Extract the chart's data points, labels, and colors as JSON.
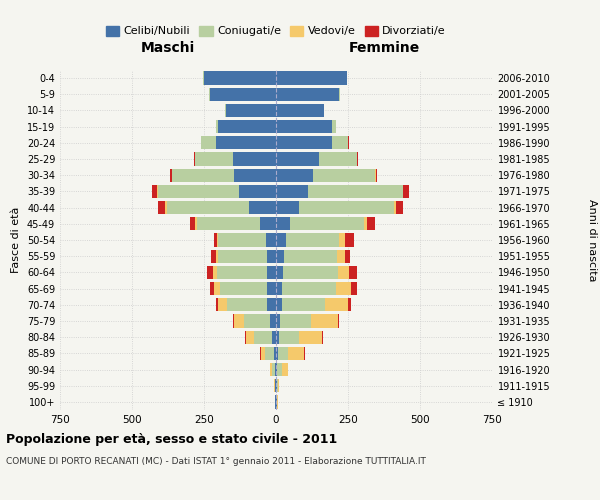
{
  "age_groups": [
    "100+",
    "95-99",
    "90-94",
    "85-89",
    "80-84",
    "75-79",
    "70-74",
    "65-69",
    "60-64",
    "55-59",
    "50-54",
    "45-49",
    "40-44",
    "35-39",
    "30-34",
    "25-29",
    "20-24",
    "15-19",
    "10-14",
    "5-9",
    "0-4"
  ],
  "birth_years": [
    "≤ 1910",
    "1911-1915",
    "1916-1920",
    "1921-1925",
    "1926-1930",
    "1931-1935",
    "1936-1940",
    "1941-1945",
    "1946-1950",
    "1951-1955",
    "1956-1960",
    "1961-1965",
    "1966-1970",
    "1971-1975",
    "1976-1980",
    "1981-1985",
    "1986-1990",
    "1991-1995",
    "1996-2000",
    "2001-2005",
    "2006-2010"
  ],
  "male": {
    "celibi": [
      2,
      2,
      5,
      8,
      15,
      20,
      30,
      30,
      30,
      30,
      35,
      55,
      95,
      130,
      145,
      150,
      210,
      200,
      175,
      230,
      250
    ],
    "coniugati": [
      2,
      3,
      10,
      30,
      60,
      90,
      140,
      165,
      175,
      170,
      165,
      220,
      285,
      280,
      215,
      130,
      50,
      10,
      2,
      2,
      2
    ],
    "vedovi": [
      1,
      2,
      5,
      15,
      30,
      35,
      30,
      20,
      15,
      10,
      5,
      5,
      5,
      2,
      2,
      1,
      1,
      0,
      0,
      0,
      0
    ],
    "divorziati": [
      0,
      0,
      0,
      2,
      3,
      5,
      10,
      15,
      20,
      15,
      10,
      20,
      25,
      20,
      5,
      2,
      1,
      0,
      0,
      0,
      0
    ]
  },
  "female": {
    "nubili": [
      2,
      2,
      5,
      8,
      10,
      15,
      20,
      22,
      25,
      28,
      35,
      50,
      80,
      110,
      130,
      150,
      195,
      195,
      165,
      220,
      245
    ],
    "coniugate": [
      2,
      4,
      15,
      35,
      70,
      105,
      150,
      185,
      190,
      185,
      185,
      255,
      330,
      330,
      215,
      130,
      55,
      12,
      2,
      2,
      2
    ],
    "vedove": [
      2,
      5,
      20,
      55,
      80,
      95,
      80,
      55,
      40,
      25,
      20,
      10,
      5,
      2,
      2,
      1,
      1,
      0,
      0,
      0,
      0
    ],
    "divorziate": [
      0,
      0,
      0,
      2,
      3,
      5,
      10,
      20,
      25,
      20,
      30,
      30,
      25,
      20,
      5,
      2,
      1,
      0,
      0,
      0,
      0
    ]
  },
  "colors": {
    "celibi": "#4472a8",
    "coniugati": "#b8cfa0",
    "vedovi": "#f5c96b",
    "divorziati": "#cc2222"
  },
  "xlim": 750,
  "title": "Popolazione per età, sesso e stato civile - 2011",
  "subtitle": "COMUNE DI PORTO RECANATI (MC) - Dati ISTAT 1° gennaio 2011 - Elaborazione TUTTITALIA.IT",
  "ylabel_left": "Fasce di età",
  "ylabel_right": "Anni di nascita",
  "xlabel_left": "Maschi",
  "xlabel_right": "Femmine",
  "bg_color": "#f5f5f0",
  "grid_color": "#cccccc"
}
